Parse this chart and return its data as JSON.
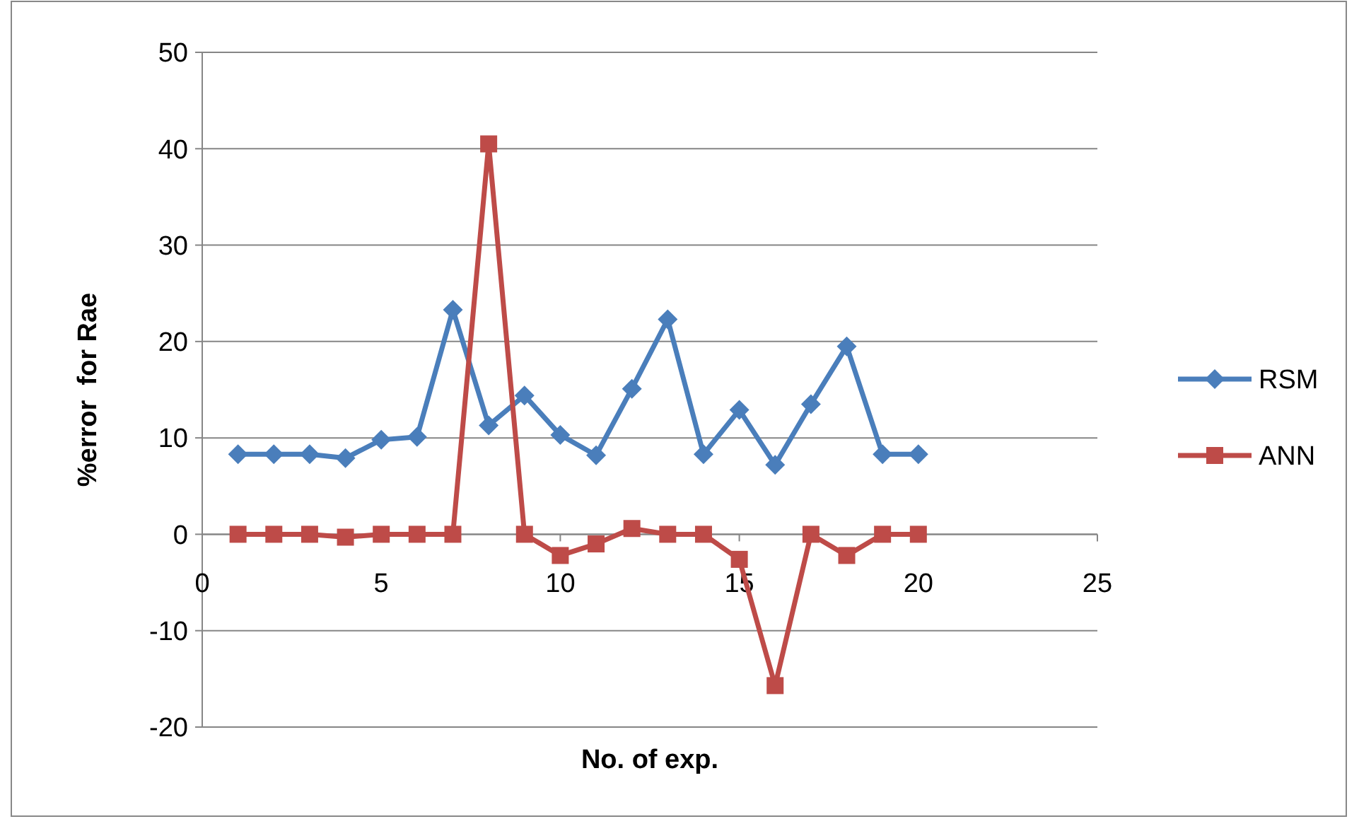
{
  "chart_data": {
    "type": "line",
    "xlabel": "No. of exp.",
    "ylabel": "%error  for Rae",
    "x": [
      1,
      2,
      3,
      4,
      5,
      6,
      7,
      8,
      9,
      10,
      11,
      12,
      13,
      14,
      15,
      16,
      17,
      18,
      19,
      20
    ],
    "series": [
      {
        "name": "RSM",
        "color": "#4a7ebb",
        "marker": "diamond",
        "values": [
          8.3,
          8.3,
          8.3,
          7.9,
          9.8,
          10.1,
          23.3,
          11.3,
          14.4,
          10.3,
          8.2,
          15.1,
          22.3,
          8.3,
          12.9,
          7.2,
          13.5,
          19.5,
          8.3,
          8.3
        ]
      },
      {
        "name": "ANN",
        "color": "#be4b48",
        "marker": "square",
        "values": [
          0,
          0,
          0,
          -0.3,
          0,
          0,
          0,
          40.5,
          0,
          -2.2,
          -1.0,
          0.6,
          0,
          0,
          -2.6,
          -15.7,
          0,
          -2.2,
          0,
          0
        ]
      }
    ],
    "xlim": [
      0,
      25
    ],
    "xticks": [
      0,
      5,
      10,
      15,
      20,
      25
    ],
    "ylim": [
      -20,
      50
    ],
    "yticks": [
      -20,
      -10,
      0,
      10,
      20,
      30,
      40,
      50
    ],
    "grid": "y",
    "legend": "right",
    "line_style": "solid"
  }
}
